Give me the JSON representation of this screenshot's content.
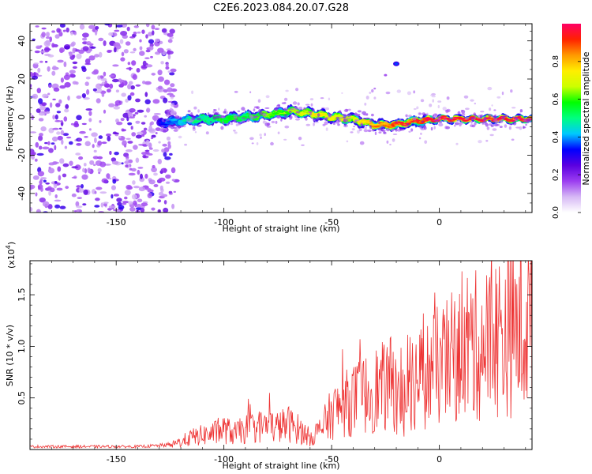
{
  "figure_title": "C2E6.2023.084.20.07.G28",
  "chart_data": [
    {
      "type": "heatmap",
      "panel": "spectrogram",
      "xlabel": "Height of straight line (km)",
      "ylabel": "Frequency (Hz)",
      "xlim": [
        -190,
        43
      ],
      "ylim": [
        -50,
        49
      ],
      "xticks": [
        -150,
        -100,
        -50,
        0
      ],
      "yticks": [
        -40,
        -20,
        0,
        20,
        40
      ],
      "xtick_labels": [
        "-150",
        "-100",
        "-50",
        "0"
      ],
      "ytick_labels": [
        "-40",
        "-20",
        "0",
        "20",
        "40"
      ],
      "noise_region_x": [
        -190,
        -125
      ],
      "signal_track": {
        "x": [
          -130,
          -120,
          -110,
          -100,
          -90,
          -80,
          -70,
          -60,
          -50,
          -40,
          -30,
          -20,
          -10,
          0,
          10,
          20,
          30,
          43
        ],
        "freq": [
          -3,
          -2,
          -1,
          -1,
          0,
          1,
          3,
          2,
          0,
          -1,
          -4,
          -4,
          -2,
          -1,
          -1,
          -1,
          -1,
          -1
        ],
        "peak_amplitude": [
          0.3,
          0.45,
          0.5,
          0.55,
          0.55,
          0.6,
          0.65,
          0.7,
          0.7,
          0.7,
          0.8,
          0.9,
          0.9,
          1.0,
          1.0,
          1.0,
          1.0,
          1.0
        ]
      },
      "isolated_blob": {
        "x": -20,
        "freq": 28
      }
    },
    {
      "type": "colorbar",
      "label": "Normalized spectral amplitude",
      "range": [
        0,
        1
      ],
      "ticks": [
        0.0,
        0.2,
        0.4,
        0.6,
        0.8
      ],
      "tick_labels": [
        "0.0",
        "0.2",
        "0.4",
        "0.6",
        "0.8"
      ],
      "colormap": [
        "#ffffff",
        "#d6b8f5",
        "#9b3df0",
        "#5a00e0",
        "#0000ff",
        "#00c8ff",
        "#00ff80",
        "#00ff00",
        "#ccff00",
        "#ffee00",
        "#ff9900",
        "#ff2200",
        "#ff0066"
      ]
    },
    {
      "type": "line",
      "panel": "snr",
      "xlabel": "Height of straight line (km)",
      "ylabel": "SNR (10 * v/v)",
      "scale_label": "(x10",
      "scale_exponent": "4",
      "scale_suffix": ")",
      "xlim": [
        -190,
        43
      ],
      "ylim": [
        0,
        1.83
      ],
      "xticks": [
        -150,
        -100,
        -50,
        0
      ],
      "yticks": [
        0.5,
        1.0,
        1.5
      ],
      "xtick_labels": [
        "-150",
        "-100",
        "-50",
        "0"
      ],
      "ytick_labels": [
        "0.5",
        "1.0",
        "1.5"
      ],
      "line_color": "#ee3333",
      "series": [
        {
          "name": "SNR",
          "x": [
            -190,
            -175,
            -160,
            -150,
            -140,
            -130,
            -125,
            -120,
            -115,
            -110,
            -105,
            -100,
            -95,
            -90,
            -85,
            -80,
            -75,
            -70,
            -65,
            -60,
            -55,
            -50,
            -45,
            -40,
            -35,
            -30,
            -25,
            -20,
            -15,
            -10,
            -5,
            0,
            5,
            10,
            15,
            20,
            25,
            30,
            35,
            43
          ],
          "y": [
            0.03,
            0.03,
            0.03,
            0.03,
            0.03,
            0.04,
            0.05,
            0.1,
            0.15,
            0.18,
            0.2,
            0.25,
            0.2,
            0.25,
            0.28,
            0.3,
            0.28,
            0.32,
            0.25,
            0.15,
            0.25,
            0.45,
            0.55,
            0.62,
            0.68,
            0.75,
            0.78,
            0.85,
            0.85,
            0.9,
            0.95,
            1.05,
            1.1,
            1.35,
            1.3,
            1.28,
            1.4,
            1.45,
            1.5,
            1.55
          ]
        }
      ]
    }
  ]
}
